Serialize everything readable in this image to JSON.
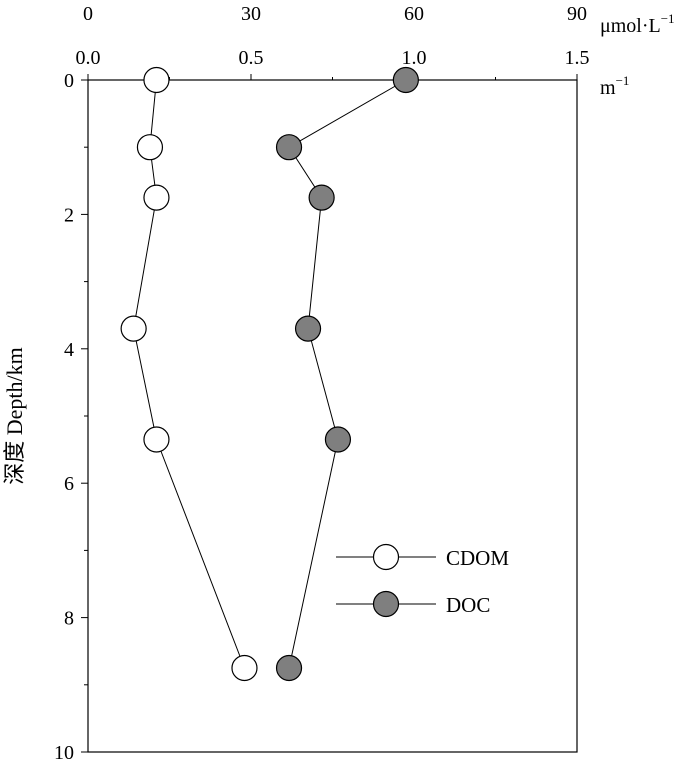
{
  "chart_data": {
    "type": "scatter",
    "ylabel": "深度 Depth/km",
    "y_axis": {
      "range": [
        0,
        10
      ],
      "ticks": [
        "0",
        "2",
        "4",
        "6",
        "8",
        "10"
      ],
      "inverted": true
    },
    "x_axis_doc": {
      "range": [
        0,
        90
      ],
      "ticks": [
        "0",
        "30",
        "60",
        "90"
      ],
      "unit_base": "μmol·L",
      "unit_sup": "−1"
    },
    "x_axis_cdom": {
      "range": [
        0,
        1.5
      ],
      "ticks": [
        "0.0",
        "0.5",
        "1.0",
        "1.5"
      ],
      "unit_base": "m",
      "unit_sup": "−1"
    },
    "series": [
      {
        "name": "CDOM",
        "axis": "cdom",
        "style": "open",
        "points": [
          {
            "x": 0.21,
            "y": 0.0
          },
          {
            "x": 0.19,
            "y": 1.0
          },
          {
            "x": 0.21,
            "y": 1.75
          },
          {
            "x": 0.14,
            "y": 3.7
          },
          {
            "x": 0.21,
            "y": 5.35
          },
          {
            "x": 0.48,
            "y": 8.75
          }
        ]
      },
      {
        "name": "DOC",
        "axis": "doc",
        "style": "filled",
        "points": [
          {
            "x": 58.5,
            "y": 0.0
          },
          {
            "x": 37.0,
            "y": 1.0
          },
          {
            "x": 43.0,
            "y": 1.75
          },
          {
            "x": 40.5,
            "y": 3.7
          },
          {
            "x": 46.0,
            "y": 5.35
          },
          {
            "x": 37.0,
            "y": 8.75
          }
        ]
      }
    ],
    "legend": {
      "placement": "right-middle"
    },
    "colors": {
      "filled": "#7f7f7f",
      "line": "#000000",
      "open_fill": "#ffffff"
    }
  }
}
